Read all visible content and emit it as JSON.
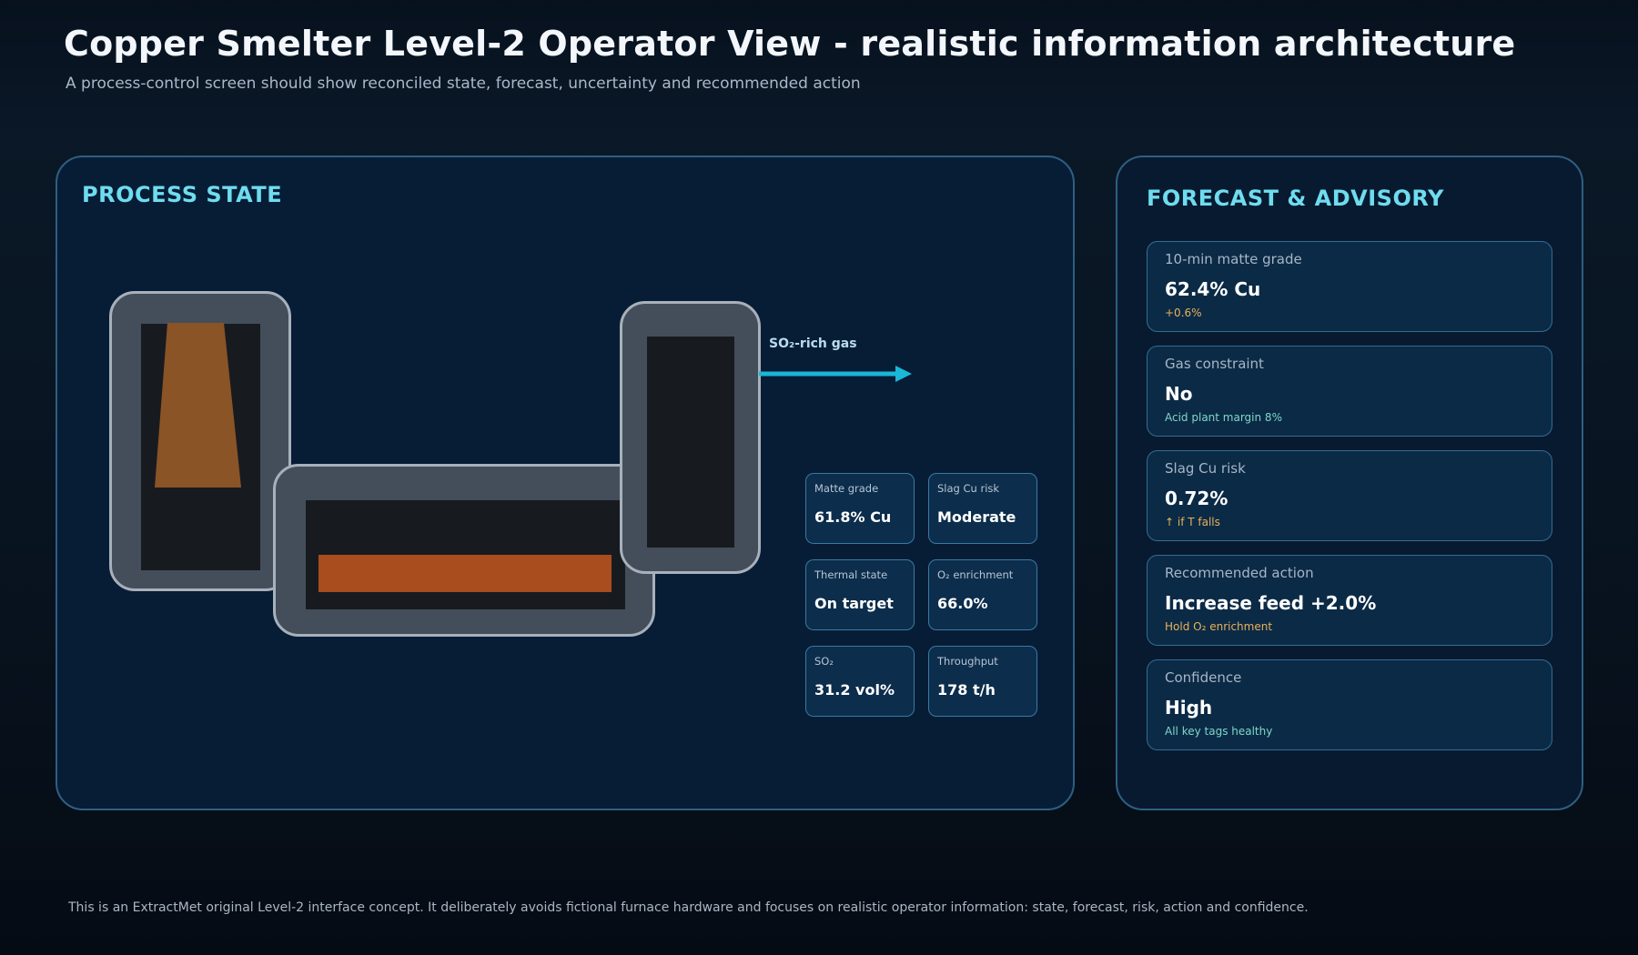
{
  "header": {
    "title": "Copper Smelter Level-2 Operator View - realistic information architecture",
    "subtitle": "A process-control screen should show reconciled state, forecast, uncertainty and recommended action"
  },
  "process_panel": {
    "title": "PROCESS STATE",
    "gas_flow_label": "SO₂-rich gas",
    "kpis": [
      {
        "label": "Matte grade",
        "value": "61.8% Cu"
      },
      {
        "label": "Slag Cu risk",
        "value": "Moderate"
      },
      {
        "label": "Thermal state",
        "value": "On target"
      },
      {
        "label": "O₂ enrichment",
        "value": "66.0%"
      },
      {
        "label": "SO₂",
        "value": "31.2 vol%"
      },
      {
        "label": "Throughput",
        "value": "178 t/h"
      }
    ]
  },
  "forecast_panel": {
    "title": "FORECAST & ADVISORY",
    "cards": [
      {
        "label": "10-min matte grade",
        "value": "62.4% Cu",
        "note": "+0.6%"
      },
      {
        "label": "Gas constraint",
        "value": "No",
        "note": "Acid plant margin 8%"
      },
      {
        "label": "Slag Cu risk",
        "value": "0.72%",
        "note": "↑ if T falls"
      },
      {
        "label": "Recommended action",
        "value": "Increase feed +2.0%",
        "note": "Hold O₂ enrichment"
      },
      {
        "label": "Confidence",
        "value": "High",
        "note": "All key tags healthy"
      }
    ]
  },
  "footer": {
    "note": "This is an ExtractMet original Level-2 interface concept. It deliberately avoids fictional furnace hardware and focuses on realistic operator information: state, forecast, risk, action and confidence."
  },
  "colors": {
    "accent": "#6fdcef",
    "gas_arrow": "#1bb7d6",
    "feed_material": "#8a5426",
    "melt_bath": "#a94c1e",
    "note_warning": "#e8b15a",
    "note_ok": "#7ed8c8"
  }
}
